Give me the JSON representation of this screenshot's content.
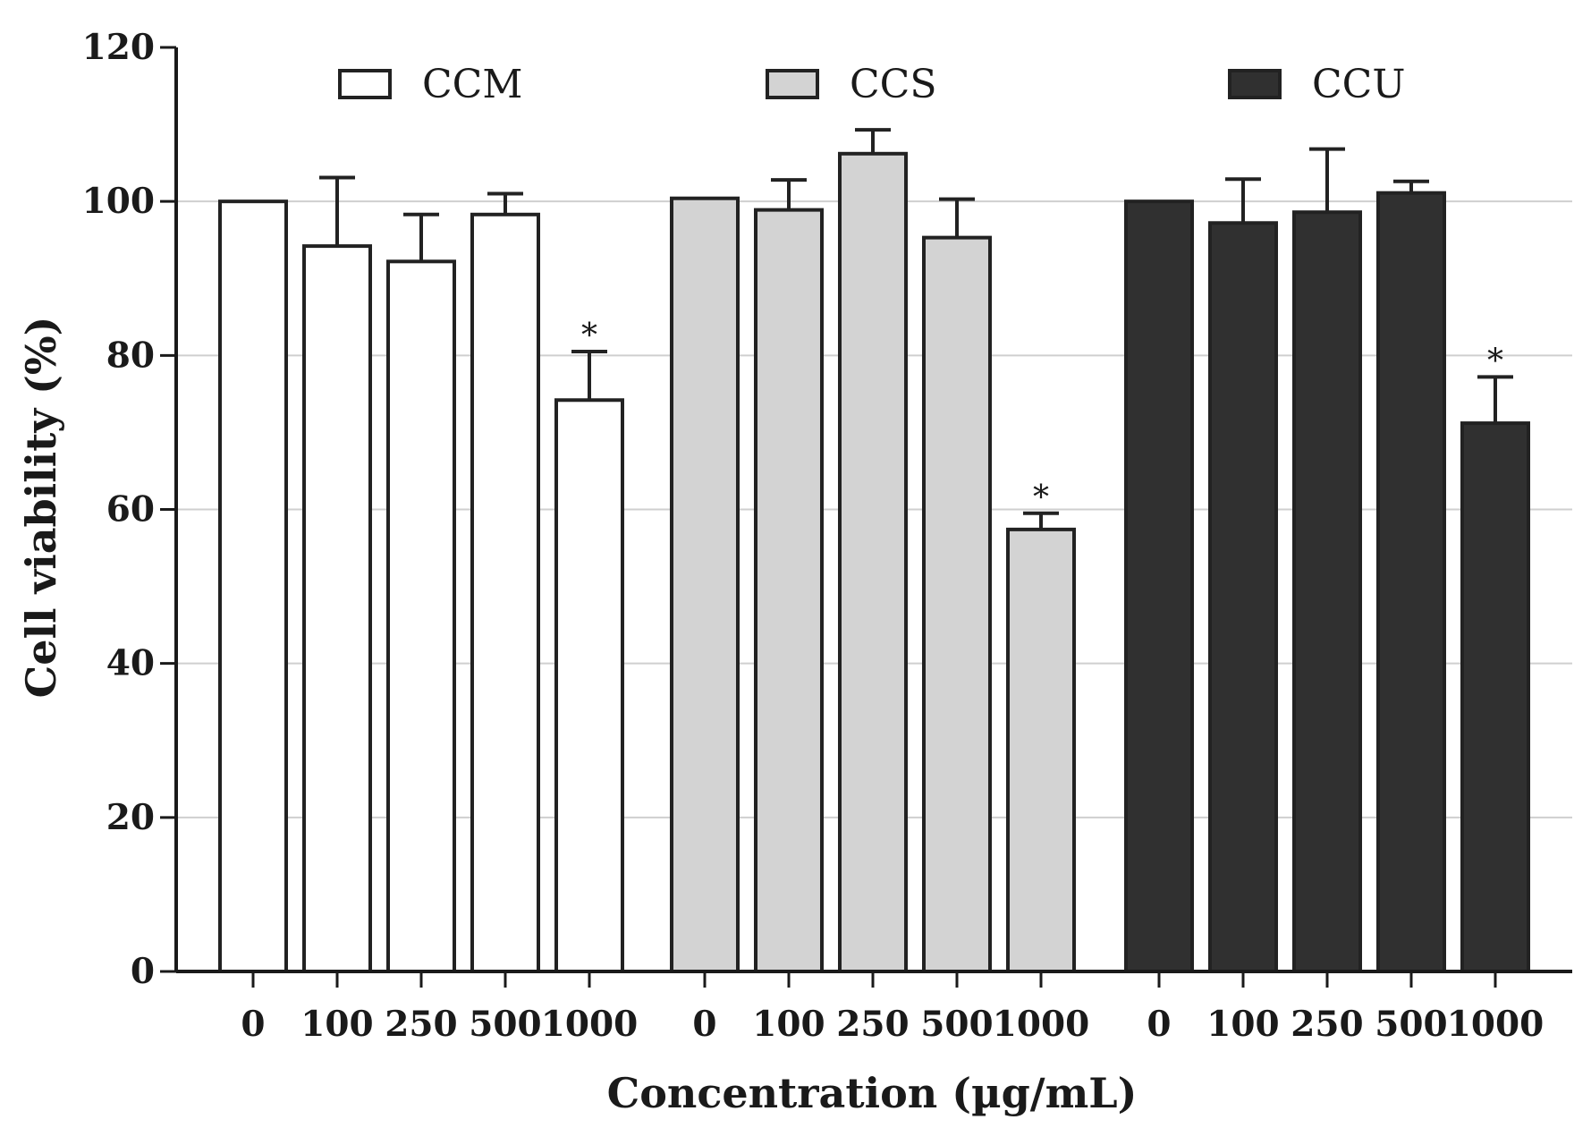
{
  "chart_data": {
    "type": "bar",
    "title": "",
    "xlabel": "Concentration (µg/mL)",
    "ylabel": "Cell viability (%)",
    "ylim": [
      0,
      120
    ],
    "yticks": [
      0,
      20,
      40,
      60,
      80,
      100,
      120
    ],
    "grid": true,
    "legend_position": "top",
    "categories": [
      "0",
      "100",
      "250",
      "500",
      "1000"
    ],
    "series": [
      {
        "name": "CCM",
        "color": "#ffffff",
        "values": [
          100,
          94.2,
          92.2,
          98.3,
          74.2
        ],
        "errors": [
          0,
          8.9,
          6.1,
          2.7,
          6.3
        ],
        "annotations": [
          "",
          "",
          "",
          "",
          "*"
        ]
      },
      {
        "name": "CCS",
        "color": "#d3d3d3",
        "values": [
          100.4,
          98.9,
          106.2,
          95.3,
          57.4
        ],
        "errors": [
          0,
          3.9,
          3.1,
          5.0,
          2.1
        ],
        "annotations": [
          "",
          "",
          "",
          "",
          "*"
        ]
      },
      {
        "name": "CCU",
        "color": "#303030",
        "values": [
          100,
          97.2,
          98.6,
          101.1,
          71.2
        ],
        "errors": [
          0,
          5.7,
          8.2,
          1.5,
          6.0
        ],
        "annotations": [
          "",
          "",
          "",
          "",
          "*"
        ]
      }
    ]
  }
}
